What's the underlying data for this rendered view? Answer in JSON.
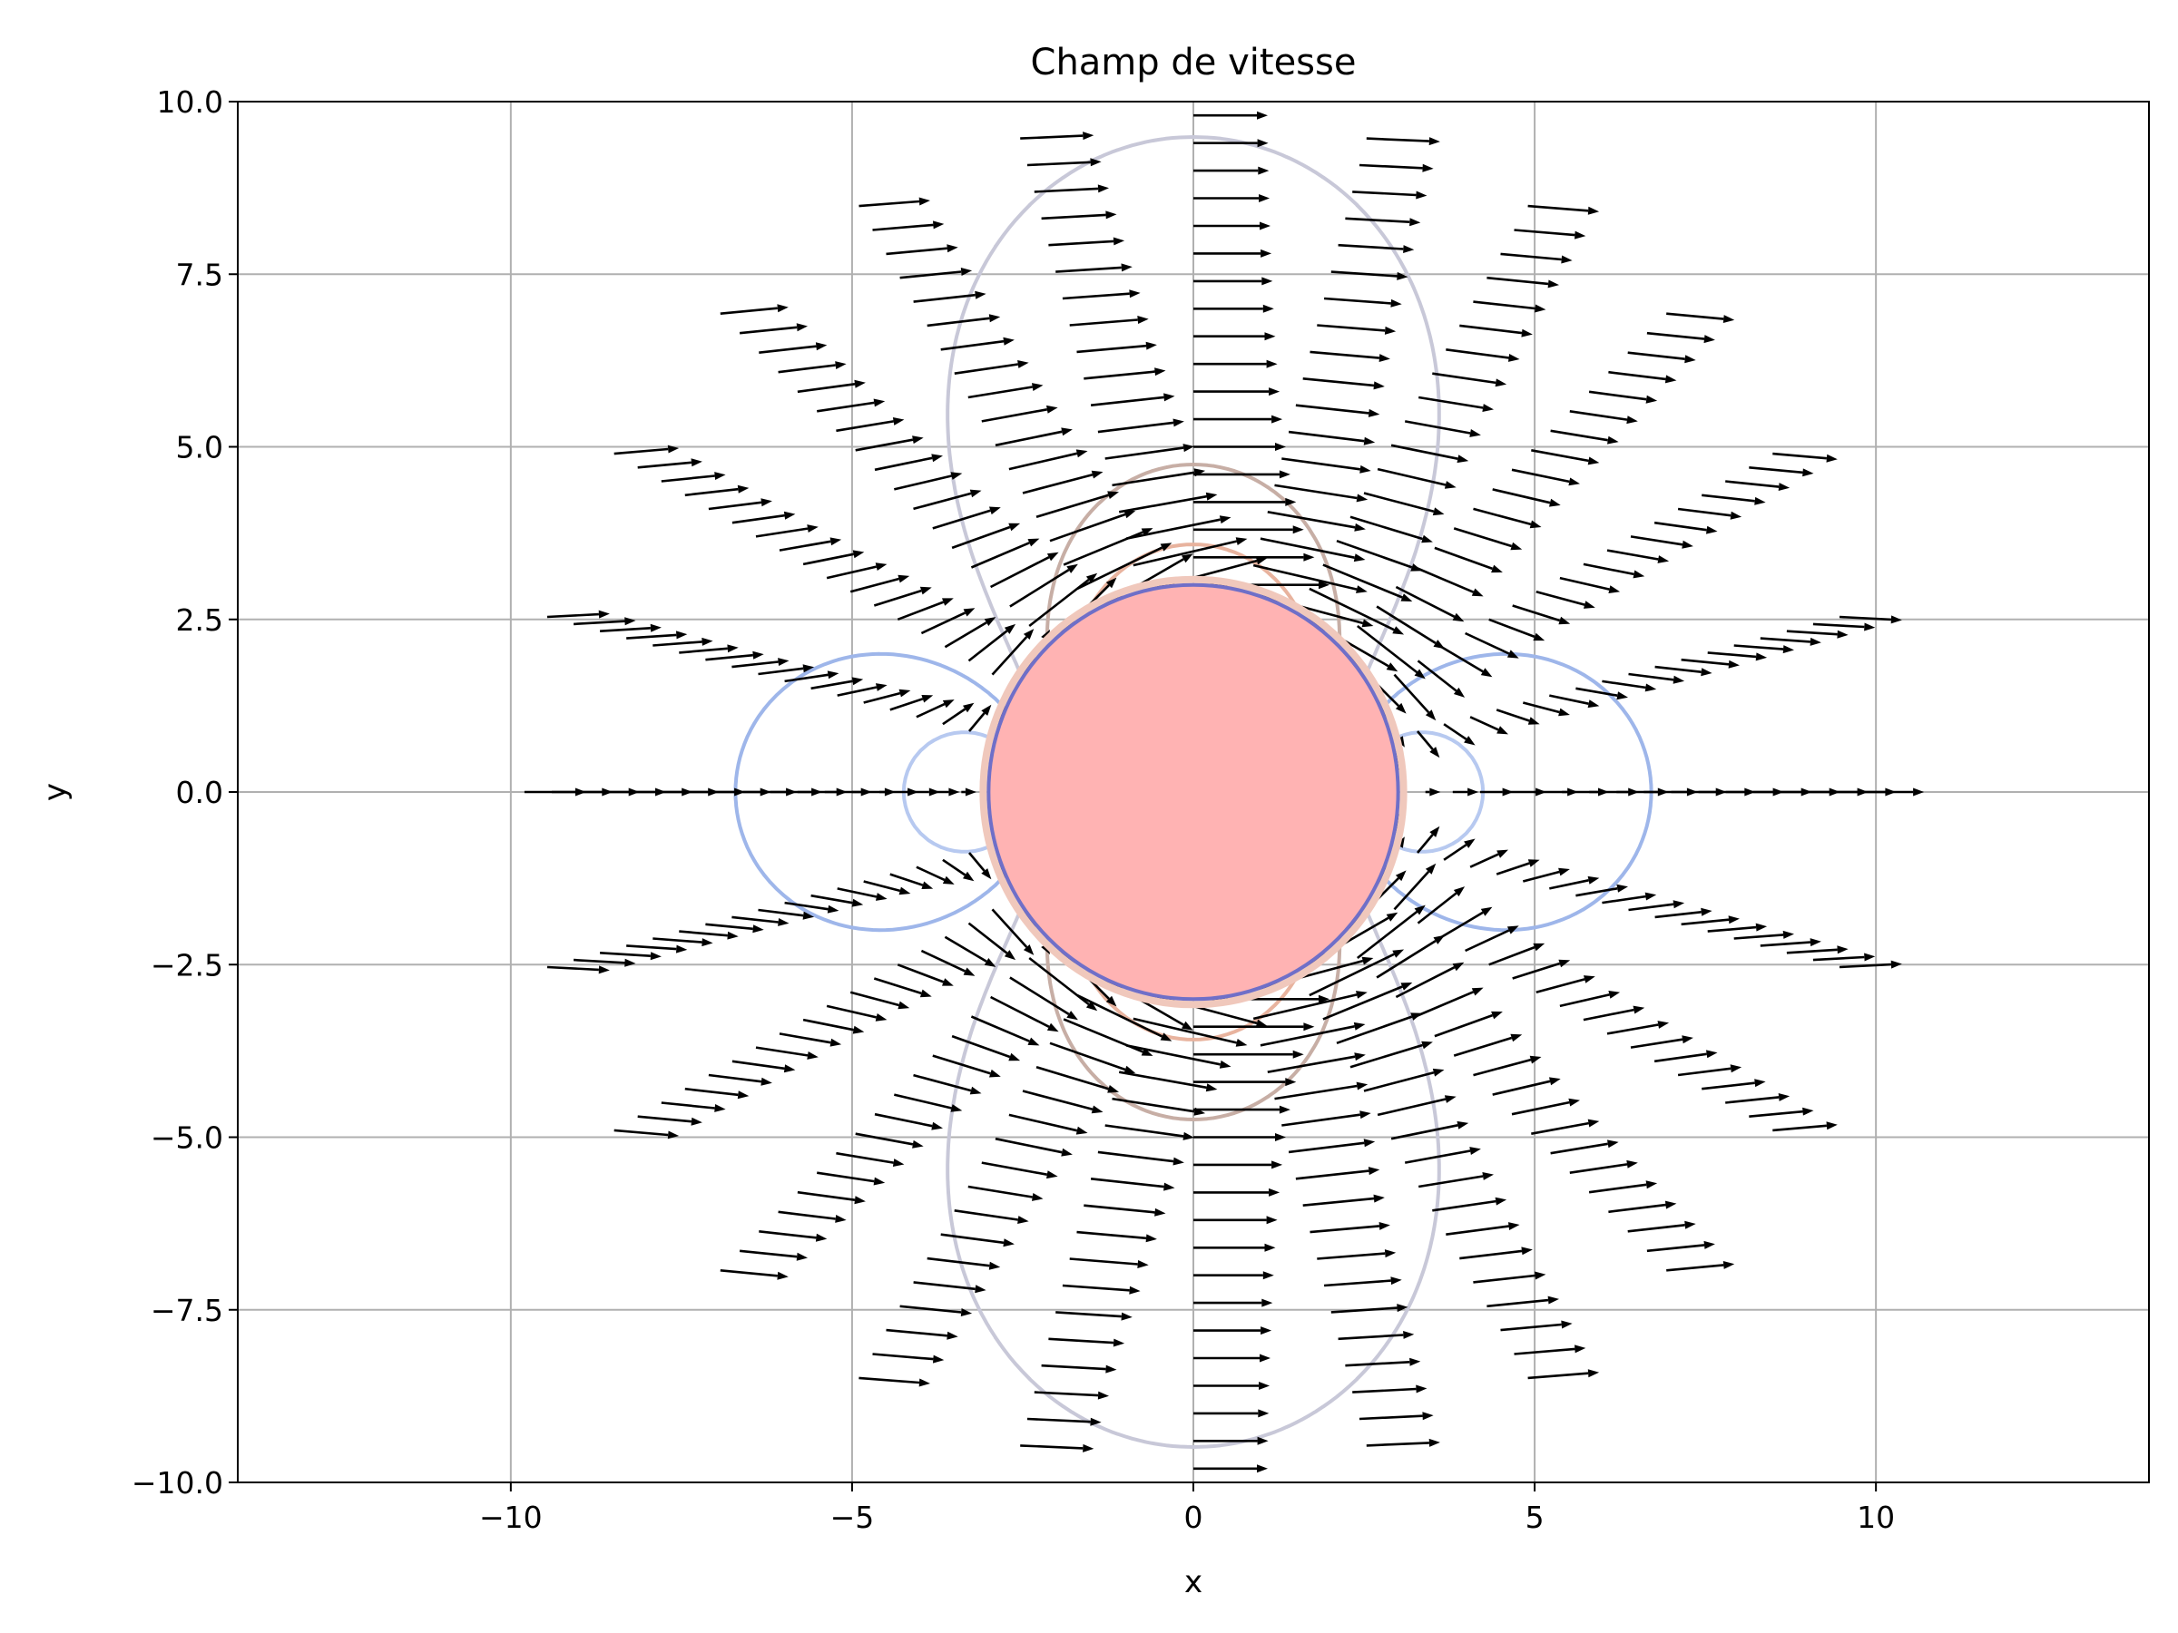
{
  "chart_data": {
    "type": "quiver",
    "title": "Champ de vitesse",
    "xlabel": "x",
    "ylabel": "y",
    "xlim": [
      -14,
      14
    ],
    "ylim": [
      -10,
      10
    ],
    "xticks": [
      -10,
      -5,
      0,
      5,
      10
    ],
    "yticks": [
      -10.0,
      -7.5,
      -5.0,
      -2.5,
      0.0,
      2.5,
      5.0,
      7.5,
      10.0
    ],
    "xtick_labels": [
      "−10",
      "−5",
      "0",
      "5",
      "10"
    ],
    "ytick_labels": [
      "−10.0",
      "−7.5",
      "−5.0",
      "−2.5",
      "0.0",
      "2.5",
      "5.0",
      "7.5",
      "10.0"
    ],
    "grid": true,
    "flow": {
      "model": "uniform flow past a cylinder",
      "cylinder_center": [
        0,
        0
      ],
      "cylinder_radius": 3,
      "outer_radius": 10,
      "free_stream_velocity": 1,
      "grid_step_r": 0.4,
      "angular_samples": 24
    },
    "cylinder_color": "#ffb3b3",
    "arrow_color": "#000000",
    "contour_levels": [
      0.5,
      0.8,
      1.1,
      1.4,
      1.7,
      1.95
    ],
    "contour_colors": [
      "#b7c9f0",
      "#9eb6ea",
      "#c8c8d8",
      "#c7aea5",
      "#e8b39e",
      "#f2a48a"
    ]
  }
}
